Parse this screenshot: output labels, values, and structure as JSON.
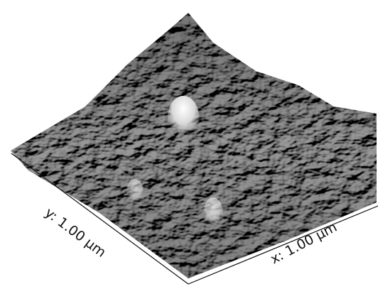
{
  "labels": {
    "y_axis": "y: 1.00 µm",
    "x_axis": "x: 1.00 µm"
  }
}
